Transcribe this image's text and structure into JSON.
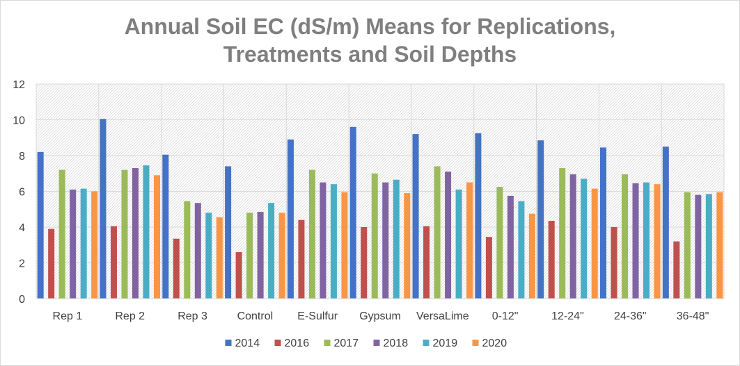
{
  "chart_data": {
    "type": "bar",
    "title_lines": [
      "Annual Soil EC (dS/m) Means for Replications,",
      "Treatments and Soil Depths"
    ],
    "xlabel": "",
    "ylabel": "",
    "ylim": [
      0,
      12
    ],
    "yticks": [
      "0",
      "2",
      "4",
      "6",
      "8",
      "10",
      "12"
    ],
    "grid": true,
    "legend_position": "bottom",
    "categories": [
      "Rep 1",
      "Rep 2",
      "Rep 3",
      "Control",
      "E-Sulfur",
      "Gypsum",
      "VersaLime",
      "0-12\"",
      "12-24\"",
      "24-36\"",
      "36-48\""
    ],
    "series": [
      {
        "name": "2014",
        "color": "#4472c4",
        "values": [
          8.2,
          10.05,
          8.05,
          7.4,
          8.9,
          9.6,
          9.2,
          9.25,
          8.85,
          8.45,
          8.5
        ]
      },
      {
        "name": "2016",
        "color": "#c0504d",
        "values": [
          3.9,
          4.05,
          3.35,
          2.6,
          4.4,
          4.0,
          4.05,
          3.45,
          4.35,
          4.0,
          3.2
        ]
      },
      {
        "name": "2017",
        "color": "#9bbb59",
        "values": [
          7.2,
          7.2,
          5.45,
          4.8,
          7.2,
          7.0,
          7.4,
          6.25,
          7.3,
          6.95,
          5.95
        ]
      },
      {
        "name": "2018",
        "color": "#8064a2",
        "values": [
          6.1,
          7.3,
          5.35,
          4.85,
          6.5,
          6.5,
          7.1,
          5.75,
          6.95,
          6.45,
          5.8
        ]
      },
      {
        "name": "2019",
        "color": "#4bacc6",
        "values": [
          6.15,
          7.45,
          4.8,
          5.35,
          6.4,
          6.65,
          6.1,
          5.45,
          6.7,
          6.5,
          5.85
        ]
      },
      {
        "name": "2020",
        "color": "#f79646",
        "values": [
          6.0,
          6.9,
          4.55,
          4.8,
          5.95,
          5.9,
          6.5,
          4.75,
          6.15,
          6.4,
          5.95
        ]
      }
    ]
  }
}
